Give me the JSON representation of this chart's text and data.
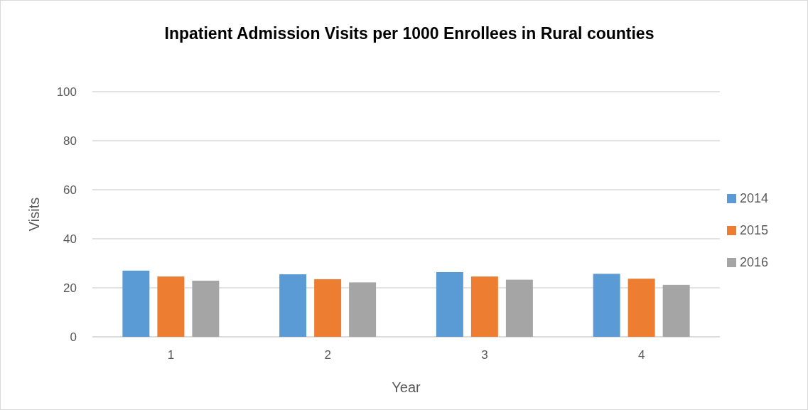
{
  "chart_data": {
    "type": "bar",
    "title": "Inpatient Admission Visits per 1000 Enrollees in Rural counties",
    "xlabel": "Year",
    "ylabel": "Visits",
    "categories": [
      "1",
      "2",
      "3",
      "4"
    ],
    "series": [
      {
        "name": "2014",
        "color": "#5b9bd5",
        "values": [
          27.0,
          25.5,
          26.4,
          25.7
        ]
      },
      {
        "name": "2015",
        "color": "#ed7d31",
        "values": [
          24.6,
          23.5,
          24.6,
          23.7
        ]
      },
      {
        "name": "2016",
        "color": "#a5a5a5",
        "values": [
          22.9,
          22.2,
          23.3,
          21.2
        ]
      }
    ],
    "ylim": [
      0,
      100
    ],
    "yticks": [
      0,
      20,
      40,
      60,
      80,
      100
    ],
    "grid": "y",
    "legend": "right"
  }
}
